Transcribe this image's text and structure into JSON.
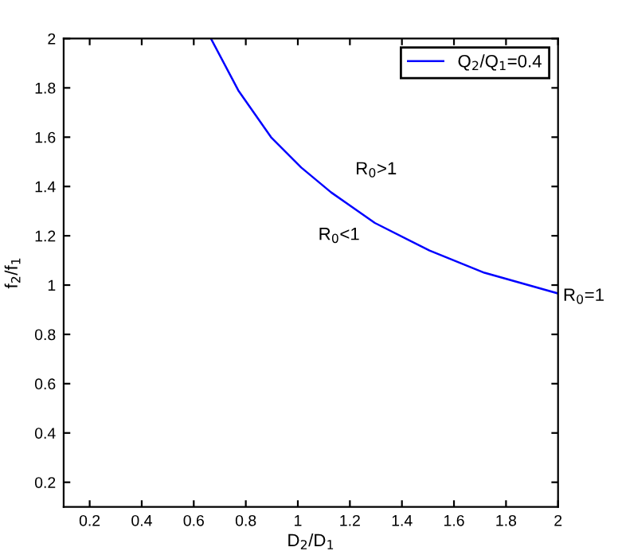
{
  "chart_data": {
    "type": "line",
    "xlabel": "D$_{2}$/D$_{1}$",
    "ylabel": "f$_{2}$/f$_{1}$",
    "xlim": [
      0.1,
      2
    ],
    "ylim": [
      0.1,
      2
    ],
    "xticks": [
      0.2,
      0.4,
      0.6,
      0.8,
      1,
      1.2,
      1.4,
      1.6,
      1.8,
      2
    ],
    "yticks": [
      0.2,
      0.4,
      0.6,
      0.8,
      1,
      1.2,
      1.4,
      1.6,
      1.8,
      2
    ],
    "legend": "top right",
    "grid": false,
    "series": [
      {
        "name": "Q$_{2}$/Q$_{1}$=0.4",
        "color": "#0000ff",
        "x": [
          0.666,
          0.771,
          0.897,
          1.013,
          1.128,
          1.296,
          1.506,
          1.717,
          2.0
        ],
        "values": [
          2.0,
          1.79,
          1.6,
          1.477,
          1.376,
          1.252,
          1.14,
          1.05,
          0.966
        ]
      }
    ],
    "annotations": [
      "R$_{0}$>1",
      "R$_{0}$<1",
      "R$_{0}$=1"
    ]
  }
}
